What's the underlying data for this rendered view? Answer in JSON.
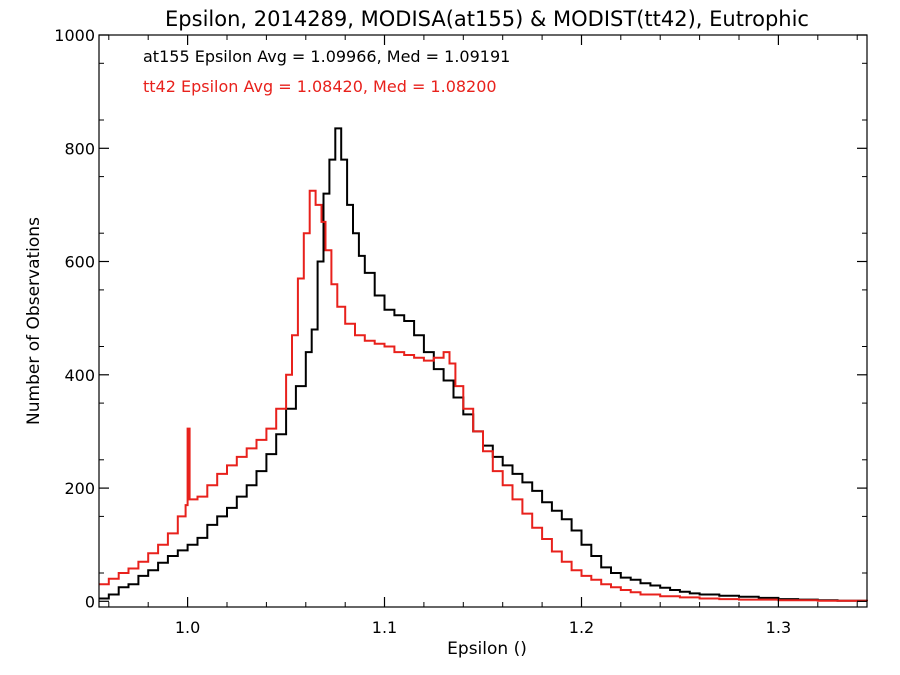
{
  "chart_data": {
    "type": "line",
    "title": "Epsilon, 2014289, MODISA(at155) & MODIST(tt42), Eutrophic",
    "xlabel": "Epsilon ()",
    "ylabel": "Number of Observations",
    "xlim": [
      0.955,
      1.345
    ],
    "ylim": [
      -10,
      1000
    ],
    "x_ticks": [
      {
        "value": 1.0,
        "label": "1.0"
      },
      {
        "value": 1.1,
        "label": "1.1"
      },
      {
        "value": 1.2,
        "label": "1.2"
      },
      {
        "value": 1.3,
        "label": "1.3"
      }
    ],
    "y_ticks": [
      {
        "value": 0,
        "label": "0"
      },
      {
        "value": 200,
        "label": "200"
      },
      {
        "value": 400,
        "label": "400"
      },
      {
        "value": 600,
        "label": "600"
      },
      {
        "value": 800,
        "label": "800"
      },
      {
        "value": 1000,
        "label": "1000"
      }
    ],
    "grid": false,
    "annotations": [
      {
        "text": "at155 Epsilon Avg = 1.09966, Med = 1.09191",
        "color": "#000000"
      },
      {
        "text": "tt42 Epsilon Avg = 1.08420, Med = 1.08200",
        "color": "#e8211c"
      }
    ],
    "series": [
      {
        "color": "#000000",
        "step": true,
        "points": [
          [
            0.955,
            5
          ],
          [
            0.96,
            12
          ],
          [
            0.965,
            25
          ],
          [
            0.97,
            30
          ],
          [
            0.975,
            45
          ],
          [
            0.98,
            55
          ],
          [
            0.985,
            68
          ],
          [
            0.99,
            80
          ],
          [
            0.995,
            90
          ],
          [
            1.0,
            100
          ],
          [
            1.005,
            112
          ],
          [
            1.01,
            135
          ],
          [
            1.015,
            150
          ],
          [
            1.02,
            165
          ],
          [
            1.025,
            185
          ],
          [
            1.03,
            205
          ],
          [
            1.035,
            230
          ],
          [
            1.04,
            260
          ],
          [
            1.045,
            295
          ],
          [
            1.05,
            340
          ],
          [
            1.055,
            380
          ],
          [
            1.06,
            440
          ],
          [
            1.063,
            480
          ],
          [
            1.066,
            600
          ],
          [
            1.069,
            720
          ],
          [
            1.072,
            780
          ],
          [
            1.075,
            835
          ],
          [
            1.078,
            780
          ],
          [
            1.081,
            700
          ],
          [
            1.084,
            650
          ],
          [
            1.087,
            610
          ],
          [
            1.09,
            580
          ],
          [
            1.095,
            540
          ],
          [
            1.1,
            515
          ],
          [
            1.105,
            505
          ],
          [
            1.11,
            495
          ],
          [
            1.115,
            470
          ],
          [
            1.12,
            440
          ],
          [
            1.125,
            410
          ],
          [
            1.13,
            390
          ],
          [
            1.135,
            360
          ],
          [
            1.14,
            330
          ],
          [
            1.145,
            300
          ],
          [
            1.15,
            275
          ],
          [
            1.155,
            255
          ],
          [
            1.16,
            240
          ],
          [
            1.165,
            225
          ],
          [
            1.17,
            210
          ],
          [
            1.175,
            195
          ],
          [
            1.18,
            175
          ],
          [
            1.185,
            160
          ],
          [
            1.19,
            145
          ],
          [
            1.195,
            125
          ],
          [
            1.2,
            100
          ],
          [
            1.205,
            80
          ],
          [
            1.21,
            60
          ],
          [
            1.215,
            50
          ],
          [
            1.22,
            42
          ],
          [
            1.225,
            38
          ],
          [
            1.23,
            32
          ],
          [
            1.235,
            28
          ],
          [
            1.24,
            24
          ],
          [
            1.245,
            20
          ],
          [
            1.25,
            17
          ],
          [
            1.255,
            14
          ],
          [
            1.26,
            12
          ],
          [
            1.27,
            10
          ],
          [
            1.28,
            8
          ],
          [
            1.29,
            6
          ],
          [
            1.3,
            4
          ],
          [
            1.31,
            3
          ],
          [
            1.32,
            2
          ],
          [
            1.33,
            1
          ],
          [
            1.345,
            1
          ]
        ]
      },
      {
        "color": "#e8211c",
        "step": true,
        "points": [
          [
            0.955,
            30
          ],
          [
            0.96,
            40
          ],
          [
            0.965,
            50
          ],
          [
            0.97,
            58
          ],
          [
            0.975,
            70
          ],
          [
            0.98,
            85
          ],
          [
            0.985,
            100
          ],
          [
            0.99,
            120
          ],
          [
            0.995,
            150
          ],
          [
            0.999,
            170
          ],
          [
            1.0,
            305
          ],
          [
            1.001,
            180
          ],
          [
            1.005,
            185
          ],
          [
            1.01,
            205
          ],
          [
            1.015,
            225
          ],
          [
            1.02,
            240
          ],
          [
            1.025,
            255
          ],
          [
            1.03,
            270
          ],
          [
            1.035,
            285
          ],
          [
            1.04,
            305
          ],
          [
            1.045,
            340
          ],
          [
            1.05,
            400
          ],
          [
            1.053,
            470
          ],
          [
            1.056,
            570
          ],
          [
            1.059,
            650
          ],
          [
            1.062,
            725
          ],
          [
            1.065,
            700
          ],
          [
            1.068,
            670
          ],
          [
            1.07,
            620
          ],
          [
            1.073,
            560
          ],
          [
            1.076,
            520
          ],
          [
            1.08,
            490
          ],
          [
            1.085,
            470
          ],
          [
            1.09,
            460
          ],
          [
            1.095,
            455
          ],
          [
            1.1,
            450
          ],
          [
            1.105,
            440
          ],
          [
            1.11,
            435
          ],
          [
            1.115,
            430
          ],
          [
            1.12,
            425
          ],
          [
            1.125,
            430
          ],
          [
            1.13,
            440
          ],
          [
            1.133,
            420
          ],
          [
            1.136,
            380
          ],
          [
            1.14,
            340
          ],
          [
            1.145,
            300
          ],
          [
            1.15,
            265
          ],
          [
            1.155,
            230
          ],
          [
            1.16,
            205
          ],
          [
            1.165,
            180
          ],
          [
            1.17,
            155
          ],
          [
            1.175,
            130
          ],
          [
            1.18,
            110
          ],
          [
            1.185,
            88
          ],
          [
            1.19,
            70
          ],
          [
            1.195,
            55
          ],
          [
            1.2,
            45
          ],
          [
            1.205,
            38
          ],
          [
            1.21,
            30
          ],
          [
            1.215,
            25
          ],
          [
            1.22,
            20
          ],
          [
            1.225,
            16
          ],
          [
            1.23,
            12
          ],
          [
            1.24,
            9
          ],
          [
            1.25,
            7
          ],
          [
            1.26,
            5
          ],
          [
            1.27,
            4
          ],
          [
            1.28,
            3
          ],
          [
            1.3,
            2
          ],
          [
            1.32,
            1
          ],
          [
            1.345,
            0
          ]
        ]
      }
    ]
  }
}
